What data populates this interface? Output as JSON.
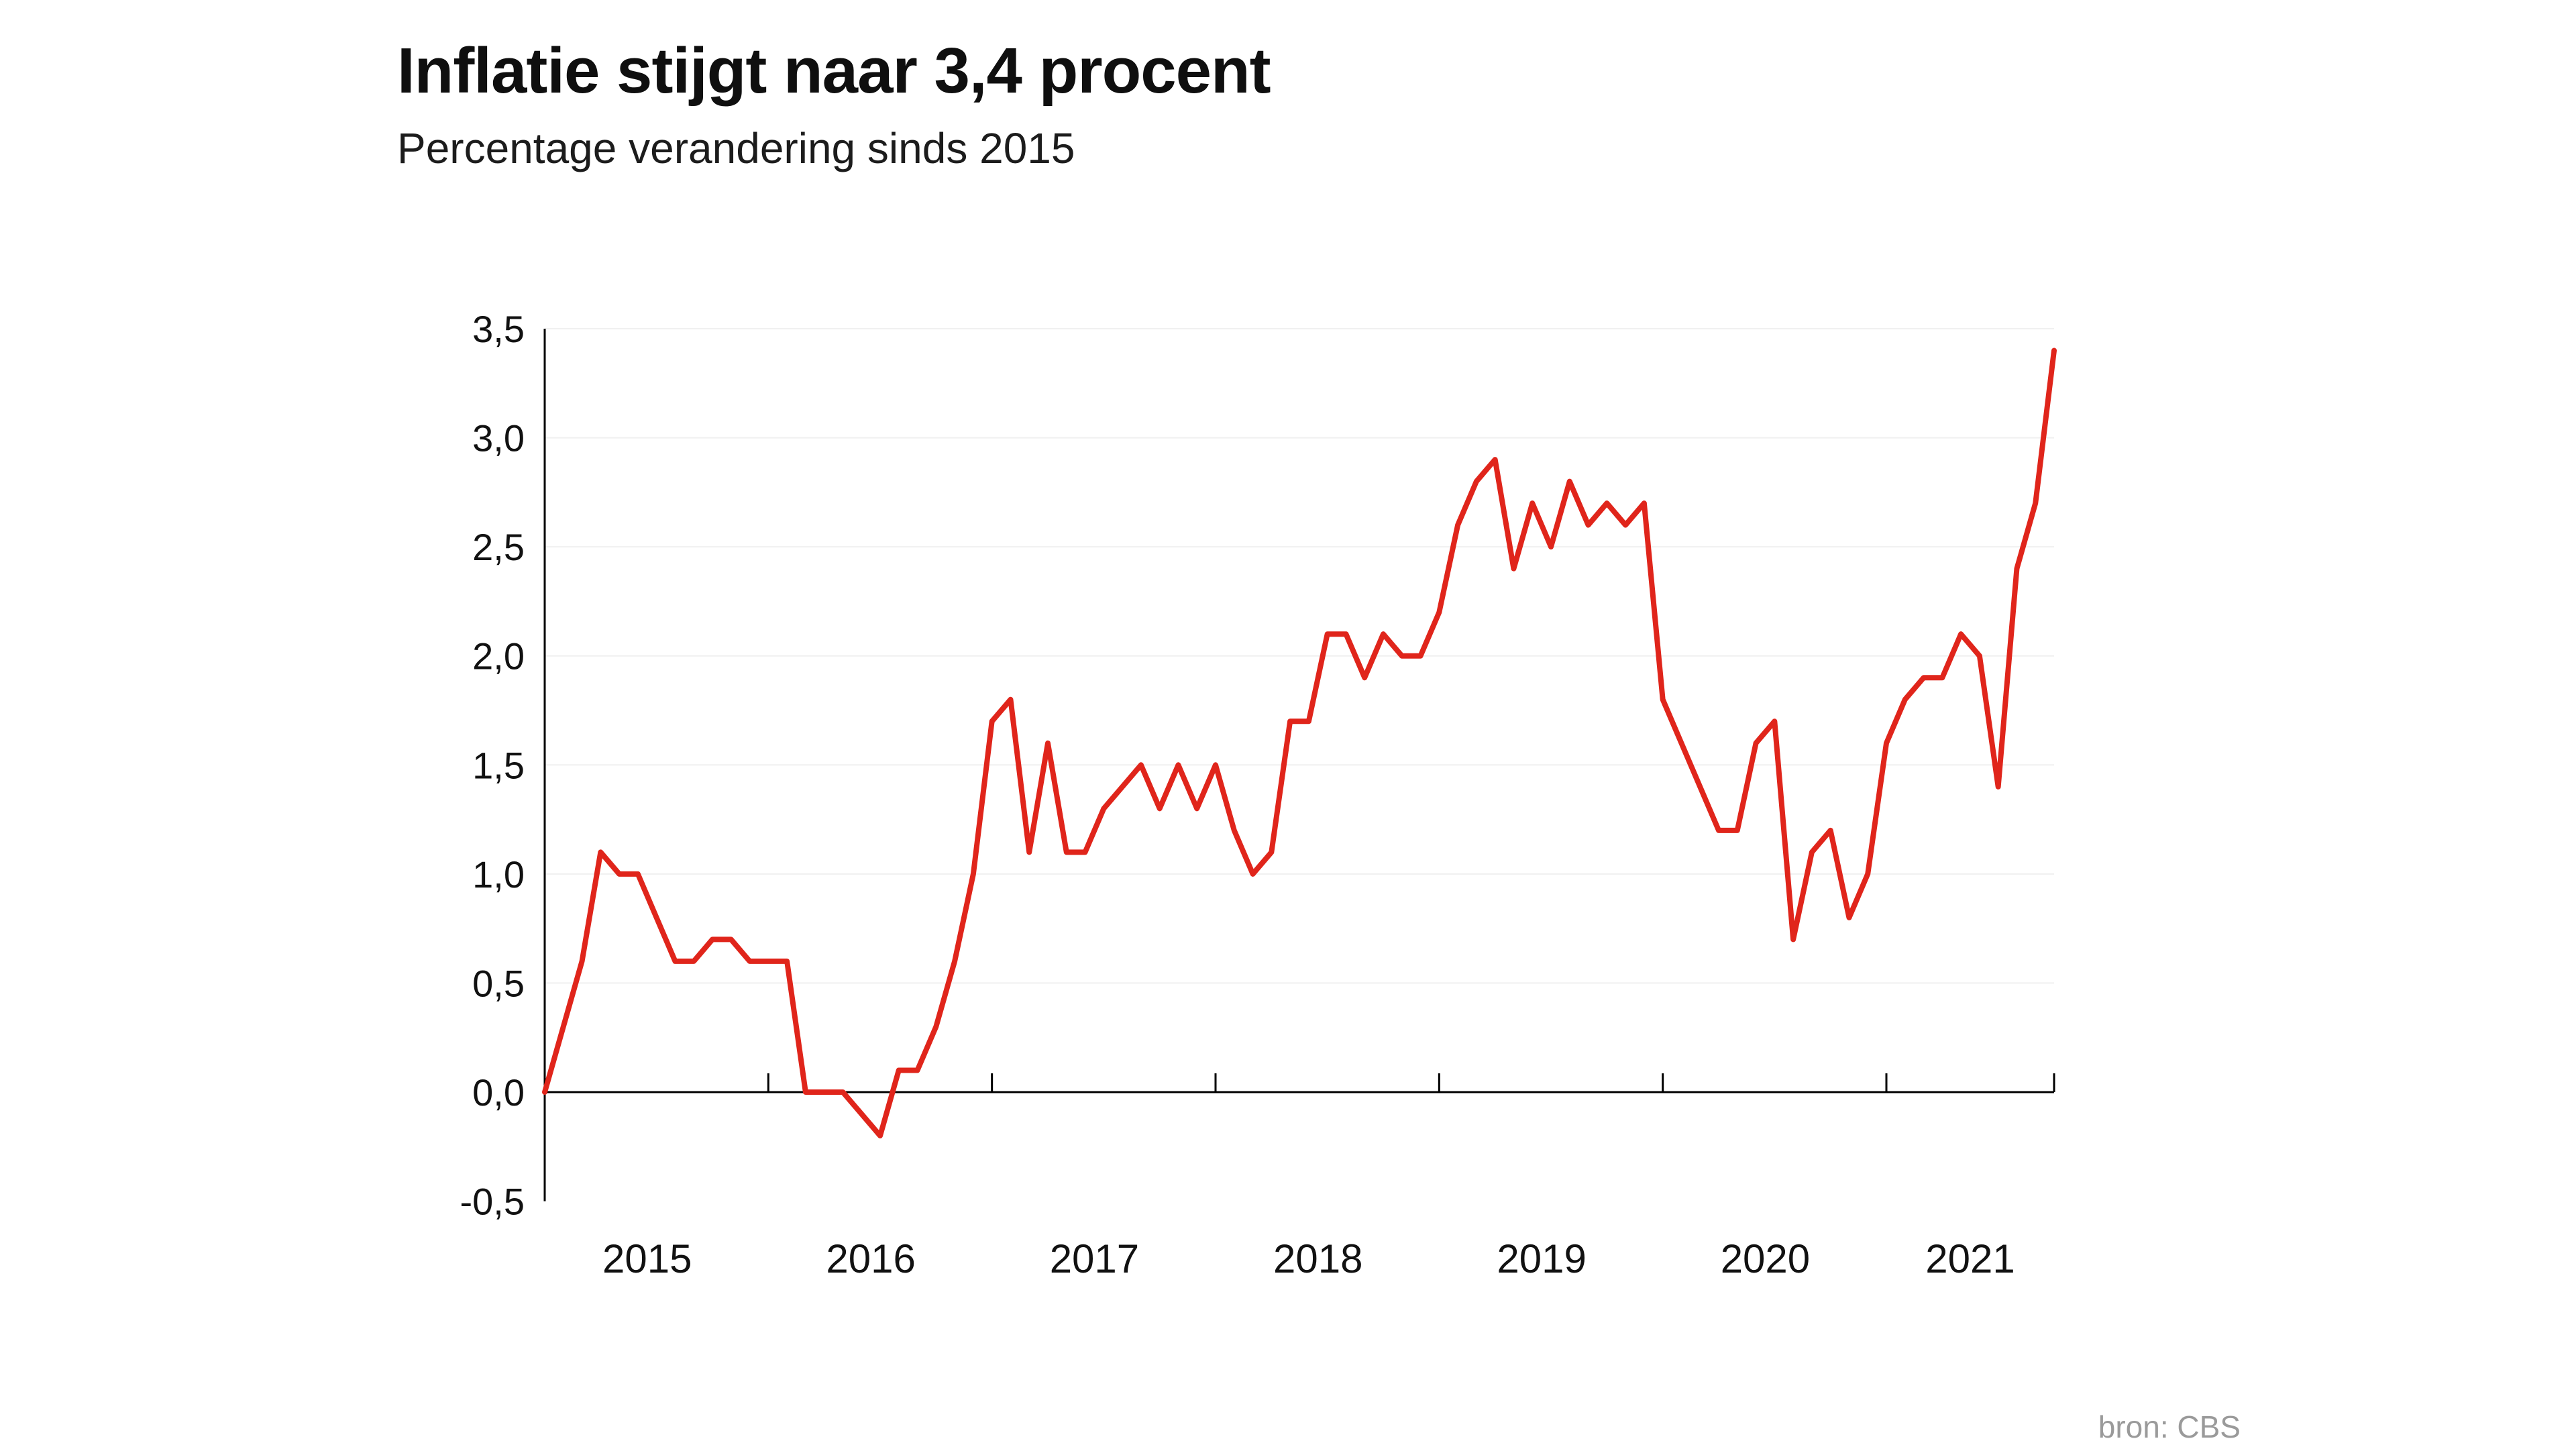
{
  "header": {
    "title": "Inflatie stijgt naar 3,4 procent",
    "subtitle": "Percentage verandering sinds 2015"
  },
  "source": "bron: CBS",
  "chart_data": {
    "type": "line",
    "title": "Inflatie stijgt naar 3,4 procent",
    "subtitle": "Percentage verandering sinds 2015",
    "series_name": "Inflatie (procent)",
    "period_start": "2015-01",
    "period_end": "2021-10",
    "x_years": [
      "2015",
      "2016",
      "2017",
      "2018",
      "2019",
      "2020",
      "2021"
    ],
    "values": [
      0.0,
      0.3,
      0.6,
      1.1,
      1.0,
      1.0,
      0.8,
      0.6,
      0.6,
      0.7,
      0.7,
      0.6,
      0.6,
      0.6,
      0.0,
      0.0,
      0.0,
      -0.1,
      -0.2,
      0.1,
      0.1,
      0.3,
      0.6,
      1.0,
      1.7,
      1.8,
      1.1,
      1.6,
      1.1,
      1.1,
      1.3,
      1.4,
      1.5,
      1.3,
      1.5,
      1.3,
      1.5,
      1.2,
      1.0,
      1.1,
      1.7,
      1.7,
      2.1,
      2.1,
      1.9,
      2.1,
      2.0,
      2.0,
      2.2,
      2.6,
      2.8,
      2.9,
      2.4,
      2.7,
      2.5,
      2.8,
      2.6,
      2.7,
      2.6,
      2.7,
      1.8,
      1.6,
      1.4,
      1.2,
      1.2,
      1.6,
      1.7,
      0.7,
      1.1,
      1.2,
      0.8,
      1.0,
      1.6,
      1.8,
      1.9,
      1.9,
      2.1,
      2.0,
      1.4,
      2.4,
      2.7,
      3.4
    ],
    "y_ticks": [
      {
        "label": "3,5",
        "value": 3.5
      },
      {
        "label": "3,0",
        "value": 3.0
      },
      {
        "label": "2,5",
        "value": 2.5
      },
      {
        "label": "2,0",
        "value": 2.0
      },
      {
        "label": "1,5",
        "value": 1.5
      },
      {
        "label": "1,0",
        "value": 1.0
      },
      {
        "label": "0,5",
        "value": 0.5
      },
      {
        "label": "0,0",
        "value": 0.0
      },
      {
        "label": "-0,5",
        "value": -0.5
      }
    ],
    "ylim": [
      -0.5,
      3.5
    ],
    "grid": true,
    "legend": "none",
    "line_color": "#e0251b",
    "axis_color": "#000000",
    "grid_color": "#f0f0f0",
    "source": "bron: CBS"
  }
}
